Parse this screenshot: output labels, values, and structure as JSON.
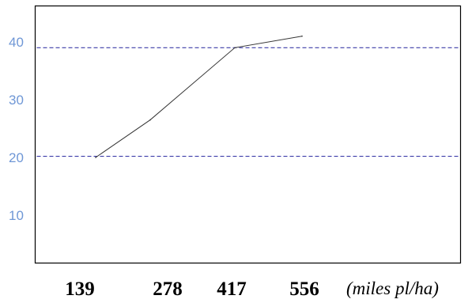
{
  "chart_data": {
    "type": "line",
    "x": [
      139,
      278,
      417,
      556
    ],
    "x_tick_labels": [
      "139",
      "278",
      "417",
      "556"
    ],
    "x_unit_label": "(miles pl/ha)",
    "series": [
      {
        "values": [
          20,
          26.5,
          39,
          41
        ]
      }
    ],
    "y_ticks": [
      10,
      20,
      30,
      40
    ],
    "ylim": [
      0,
      45
    ],
    "reference_lines": [
      20.2,
      39
    ],
    "grid": false,
    "legend": "none",
    "colors": {
      "line": "#333333",
      "reference_line": "#3b3ba8",
      "y_tick": "#6f97d6",
      "x_tick": "#000000",
      "frame": "#000000"
    }
  }
}
